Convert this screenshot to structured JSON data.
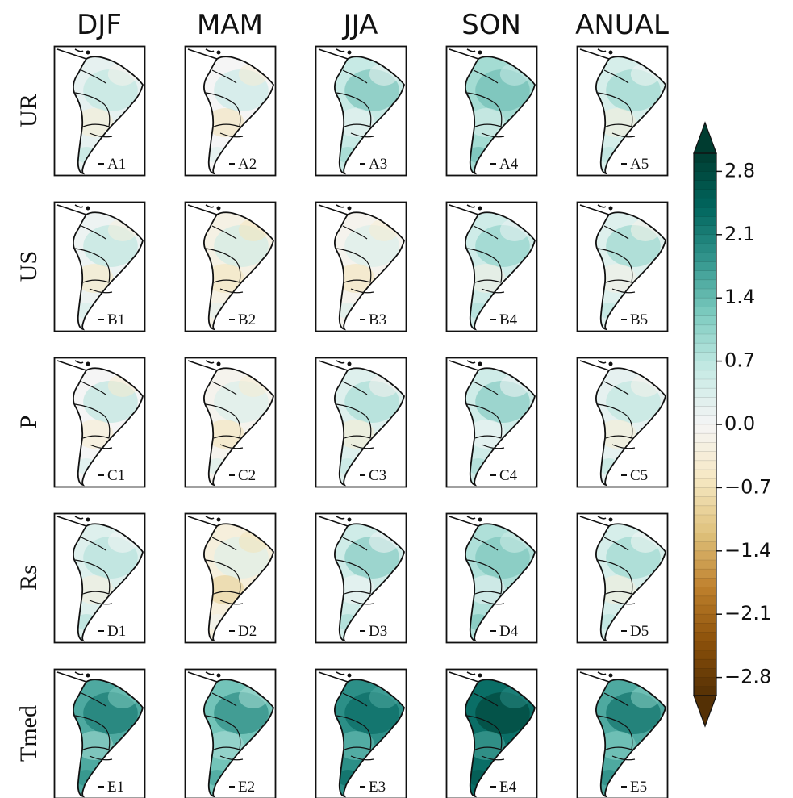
{
  "chart_data": {
    "type": "heatmap",
    "columns": [
      "DJF",
      "MAM",
      "JJA",
      "SON",
      "ANUAL"
    ],
    "rows": [
      "UR",
      "US",
      "P",
      "Rs",
      "Tmed"
    ],
    "panels": [
      [
        "A1",
        "A2",
        "A3",
        "A4",
        "A5"
      ],
      [
        "B1",
        "B2",
        "B3",
        "B4",
        "B5"
      ],
      [
        "C1",
        "C2",
        "C3",
        "C4",
        "C5"
      ],
      [
        "D1",
        "D2",
        "D3",
        "D4",
        "D5"
      ],
      [
        "E1",
        "E2",
        "E3",
        "E4",
        "E5"
      ]
    ],
    "colorbar": {
      "ticks": [
        2.8,
        2.1,
        1.4,
        0.7,
        0.0,
        -0.7,
        -1.4,
        -2.1,
        -2.8
      ],
      "tick_labels": [
        "2.8",
        "2.1",
        "1.4",
        "0.7",
        "0.0",
        "−0.7",
        "−1.4",
        "−2.1",
        "−2.8"
      ],
      "range": [
        -3.0,
        3.0
      ],
      "extend": "both",
      "colors": [
        "#543005",
        "#8c510a",
        "#bf812d",
        "#dfc27d",
        "#f6e8c3",
        "#f5f5f5",
        "#c7eae5",
        "#80cdc1",
        "#35978f",
        "#01665e",
        "#003c30"
      ]
    },
    "mean_anomaly": [
      [
        0.2,
        0.0,
        0.6,
        0.9,
        0.4
      ],
      [
        0.1,
        -0.2,
        -0.1,
        0.5,
        0.3
      ],
      [
        0.0,
        -0.1,
        0.3,
        0.5,
        0.2
      ],
      [
        0.3,
        -0.3,
        0.5,
        0.8,
        0.4
      ],
      [
        1.6,
        1.3,
        1.9,
        2.3,
        1.6
      ]
    ]
  }
}
